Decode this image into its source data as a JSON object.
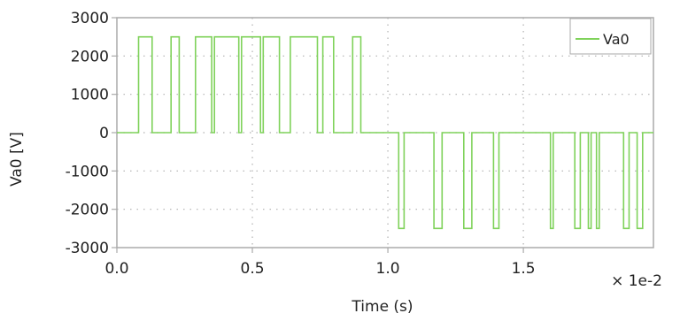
{
  "chart_data": {
    "type": "line",
    "title": "",
    "xlabel": "Time (s)",
    "ylabel": "Va0 [V]",
    "x_scale_note": "× 1e-2",
    "xlim": [
      0.0,
      1.98
    ],
    "ylim": [
      -3000,
      3000
    ],
    "x_ticks": [
      0.0,
      0.5,
      1.0,
      1.5
    ],
    "x_tick_labels": [
      "0.0",
      "0.5",
      "1.0",
      "1.5"
    ],
    "y_ticks": [
      3000,
      2000,
      1000,
      0,
      -1000,
      -2000,
      -3000
    ],
    "y_tick_labels": [
      "3000",
      "2000",
      "1000",
      "0",
      "-1000",
      "-2000",
      "-3000"
    ],
    "grid": "dotted",
    "legend_position": "top-right",
    "colors": {
      "series": "#7fd25a",
      "axis": "#aaaaaa",
      "grid": "#b0b0b0"
    },
    "series": [
      {
        "name": "Va0",
        "x": [
          0.0,
          0.08,
          0.08,
          0.13,
          0.13,
          0.2,
          0.2,
          0.23,
          0.23,
          0.29,
          0.29,
          0.35,
          0.35,
          0.36,
          0.36,
          0.45,
          0.45,
          0.46,
          0.46,
          0.53,
          0.53,
          0.54,
          0.54,
          0.6,
          0.6,
          0.64,
          0.64,
          0.74,
          0.74,
          0.76,
          0.76,
          0.8,
          0.8,
          0.87,
          0.87,
          0.9,
          0.9,
          0.93,
          0.93,
          1.04,
          1.04,
          1.06,
          1.06,
          1.17,
          1.17,
          1.2,
          1.2,
          1.28,
          1.28,
          1.31,
          1.31,
          1.39,
          1.39,
          1.41,
          1.41,
          1.6,
          1.6,
          1.61,
          1.61,
          1.69,
          1.69,
          1.71,
          1.71,
          1.74,
          1.74,
          1.75,
          1.75,
          1.77,
          1.77,
          1.78,
          1.78,
          1.87,
          1.87,
          1.89,
          1.89,
          1.92,
          1.92,
          1.94,
          1.94,
          1.98
        ],
        "y": [
          0,
          0,
          2500,
          2500,
          0,
          0,
          2500,
          2500,
          0,
          0,
          2500,
          2500,
          0,
          0,
          2500,
          2500,
          0,
          0,
          2500,
          2500,
          0,
          0,
          2500,
          2500,
          0,
          0,
          2500,
          2500,
          0,
          0,
          2500,
          2500,
          0,
          0,
          2500,
          2500,
          0,
          0,
          0,
          0,
          -2500,
          -2500,
          0,
          0,
          -2500,
          -2500,
          0,
          0,
          -2500,
          -2500,
          0,
          0,
          -2500,
          -2500,
          0,
          0,
          -2500,
          -2500,
          0,
          0,
          -2500,
          -2500,
          0,
          0,
          -2500,
          -2500,
          0,
          0,
          -2500,
          -2500,
          0,
          0,
          -2500,
          -2500,
          0,
          0,
          -2500,
          -2500,
          0,
          0
        ]
      }
    ]
  }
}
